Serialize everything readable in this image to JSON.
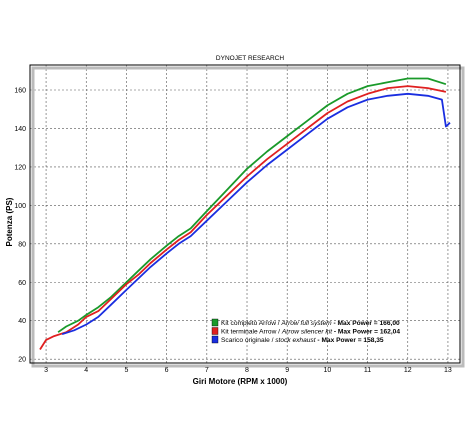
{
  "chart_data": {
    "type": "line",
    "title": "DYNOJET RESEARCH",
    "xlabel": "Giri Motore (RPM x 1000)",
    "ylabel": "Potenza (PS)",
    "xlim": [
      2.6,
      13.3
    ],
    "ylim": [
      18,
      173
    ],
    "xticks": [
      "3",
      "4",
      "5",
      "6",
      "7",
      "8",
      "9",
      "10",
      "11",
      "12",
      "13"
    ],
    "yticks": [
      "20",
      "40",
      "60",
      "80",
      "100",
      "120",
      "140",
      "160"
    ],
    "grid": true,
    "legend_position": "bottom-right",
    "series": [
      {
        "name": "Kit completo Arrow / Arrow full system - Max Power = 166,00",
        "legend_parts": [
          "Kit completo Arrow / ",
          "Arrow full system",
          " - Max Power = 166,00"
        ],
        "color": "#1a9a2a",
        "x": [
          3.3,
          3.5,
          3.8,
          4.0,
          4.3,
          4.6,
          5.0,
          5.3,
          5.6,
          6.0,
          6.3,
          6.6,
          7.0,
          7.5,
          8.0,
          8.5,
          9.0,
          9.5,
          10.0,
          10.5,
          11.0,
          11.5,
          12.0,
          12.5,
          12.95
        ],
        "y": [
          34,
          37,
          40,
          43,
          47,
          52,
          60,
          66,
          72,
          79,
          84,
          88,
          97,
          108,
          119,
          128,
          136,
          144,
          152,
          158,
          162,
          164,
          166,
          166,
          163
        ]
      },
      {
        "name": "Kit terminale Arrow / Arrow silencer kit - Max Power = 162,04",
        "legend_parts": [
          "Kit terminale Arrow / ",
          "Arrow silencer kit",
          " - Max Power = 162,04"
        ],
        "color": "#e02020",
        "x": [
          2.85,
          3.0,
          3.2,
          3.5,
          3.8,
          4.0,
          4.3,
          4.6,
          5.0,
          5.3,
          5.6,
          6.0,
          6.3,
          6.6,
          7.0,
          7.5,
          8.0,
          8.5,
          9.0,
          9.5,
          10.0,
          10.5,
          11.0,
          11.5,
          12.0,
          12.5,
          12.95
        ],
        "y": [
          25,
          30,
          32,
          34,
          38,
          42,
          45,
          51,
          59,
          64,
          70,
          77,
          82,
          86,
          95,
          105,
          115,
          124,
          132,
          140,
          148,
          154,
          158,
          161,
          162,
          161,
          159
        ]
      },
      {
        "name": "Scarico originale / stock exhaust - Max Power = 158,35",
        "legend_parts": [
          "Scarico originale / ",
          "stock exhaust",
          " - Max Power = 158,35"
        ],
        "color": "#1a2ee0",
        "x": [
          3.4,
          3.7,
          4.0,
          4.3,
          4.6,
          5.0,
          5.3,
          5.6,
          6.0,
          6.3,
          6.6,
          7.0,
          7.5,
          8.0,
          8.5,
          9.0,
          9.5,
          10.0,
          10.5,
          11.0,
          11.5,
          12.0,
          12.5,
          12.85,
          12.95,
          13.05
        ],
        "y": [
          33,
          35,
          38,
          42,
          48,
          56,
          62,
          68,
          75,
          80,
          84,
          92,
          102,
          112,
          121,
          129,
          137,
          145,
          151,
          155,
          157,
          158,
          157,
          155,
          141,
          143
        ]
      }
    ]
  }
}
